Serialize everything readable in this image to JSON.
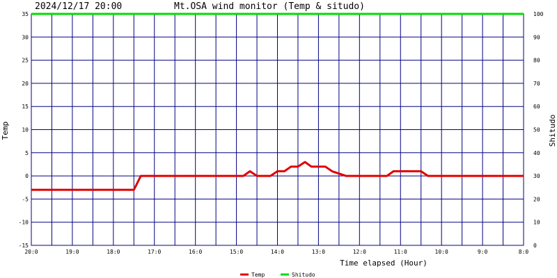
{
  "header": {
    "timestamp": "2024/12/17 20:00",
    "title": "Mt.OSA wind monitor (Temp & situdo)"
  },
  "chart_data": {
    "type": "line",
    "title": "Mt.OSA wind monitor (Temp & situdo)",
    "xlabel": "Time elapsed (Hour)",
    "ylabel": "Temp",
    "y2label": "Shitudo",
    "ylim": [
      -15,
      35
    ],
    "y2lim": [
      0,
      100
    ],
    "xlim": [
      0,
      12
    ],
    "x_unit": "hours elapsed",
    "y_ticks": [
      -15,
      -10,
      -5,
      0,
      5,
      10,
      15,
      20,
      25,
      30,
      35
    ],
    "y2_ticks": [
      0,
      10,
      20,
      30,
      40,
      50,
      60,
      70,
      80,
      90,
      100
    ],
    "x_ticks": [
      {
        "x": 0,
        "label": "20:0"
      },
      {
        "x": 1,
        "label": "19:0"
      },
      {
        "x": 2,
        "label": "18:0"
      },
      {
        "x": 3,
        "label": "17:0"
      },
      {
        "x": 4,
        "label": "16:0"
      },
      {
        "x": 5,
        "label": "15:0"
      },
      {
        "x": 6,
        "label": "14:0"
      },
      {
        "x": 7,
        "label": "13:0"
      },
      {
        "x": 8,
        "label": "12:0"
      },
      {
        "x": 9,
        "label": "11:0"
      },
      {
        "x": 10,
        "label": "10:0"
      },
      {
        "x": 11,
        "label": "9:0"
      },
      {
        "x": 12,
        "label": "8:0"
      }
    ],
    "grid": true,
    "legend": "bottom",
    "series": [
      {
        "name": "Temp",
        "color": "#e00000",
        "axis": "left",
        "x": [
          0,
          2.5,
          2.67,
          5.17,
          5.33,
          5.5,
          5.83,
          6.0,
          6.17,
          6.33,
          6.5,
          6.67,
          6.83,
          7.0,
          7.17,
          7.33,
          7.67,
          8.0,
          8.17,
          8.33,
          8.5,
          8.67,
          8.83,
          9.0,
          9.17,
          9.33,
          9.5,
          9.67,
          9.83,
          10.0,
          12.0
        ],
        "values": [
          -3,
          -3,
          0,
          0,
          1,
          0,
          0,
          1,
          1,
          2,
          2,
          3,
          2,
          2,
          2,
          1,
          0,
          0,
          0,
          0,
          0,
          0,
          1,
          1,
          1,
          1,
          1,
          0,
          0,
          0,
          0
        ]
      },
      {
        "name": "Shitudo",
        "color": "#00dd00",
        "axis": "right",
        "x": [
          0,
          12
        ],
        "values": [
          100,
          100
        ]
      }
    ]
  }
}
